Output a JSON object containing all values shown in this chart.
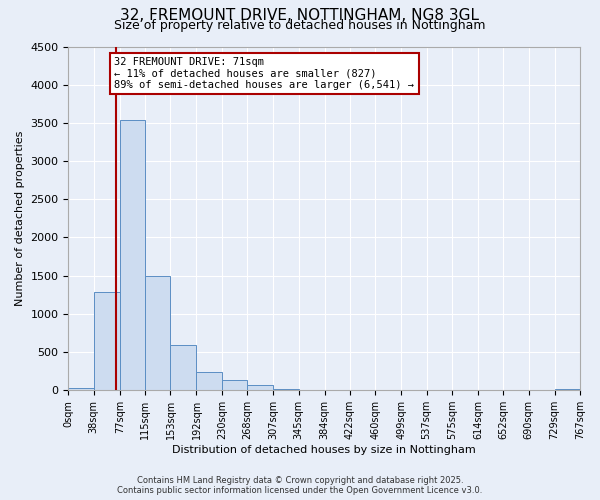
{
  "title": "32, FREMOUNT DRIVE, NOTTINGHAM, NG8 3GL",
  "subtitle": "Size of property relative to detached houses in Nottingham",
  "xlabel": "Distribution of detached houses by size in Nottingham",
  "ylabel": "Number of detached properties",
  "bin_labels": [
    "0sqm",
    "38sqm",
    "77sqm",
    "115sqm",
    "153sqm",
    "192sqm",
    "230sqm",
    "268sqm",
    "307sqm",
    "345sqm",
    "384sqm",
    "422sqm",
    "460sqm",
    "499sqm",
    "537sqm",
    "575sqm",
    "614sqm",
    "652sqm",
    "690sqm",
    "729sqm",
    "767sqm"
  ],
  "bin_edges": [
    0,
    38,
    77,
    115,
    153,
    192,
    230,
    268,
    307,
    345,
    384,
    422,
    460,
    499,
    537,
    575,
    614,
    652,
    690,
    729,
    767
  ],
  "bar_heights": [
    30,
    1280,
    3540,
    1490,
    590,
    240,
    130,
    70,
    20,
    0,
    0,
    0,
    0,
    0,
    0,
    0,
    0,
    0,
    0,
    10
  ],
  "bar_color": "#cddcf0",
  "bar_edge_color": "#5b8ec4",
  "ylim": [
    0,
    4500
  ],
  "yticks": [
    0,
    500,
    1000,
    1500,
    2000,
    2500,
    3000,
    3500,
    4000,
    4500
  ],
  "property_size": 71,
  "property_line_color": "#aa0000",
  "annotation_title": "32 FREMOUNT DRIVE: 71sqm",
  "annotation_line1": "← 11% of detached houses are smaller (827)",
  "annotation_line2": "89% of semi-detached houses are larger (6,541) →",
  "annotation_box_color": "#aa0000",
  "footer_line1": "Contains HM Land Registry data © Crown copyright and database right 2025.",
  "footer_line2": "Contains public sector information licensed under the Open Government Licence v3.0.",
  "bg_color": "#e8eef8",
  "grid_color": "#ffffff",
  "title_fontsize": 11,
  "subtitle_fontsize": 9
}
